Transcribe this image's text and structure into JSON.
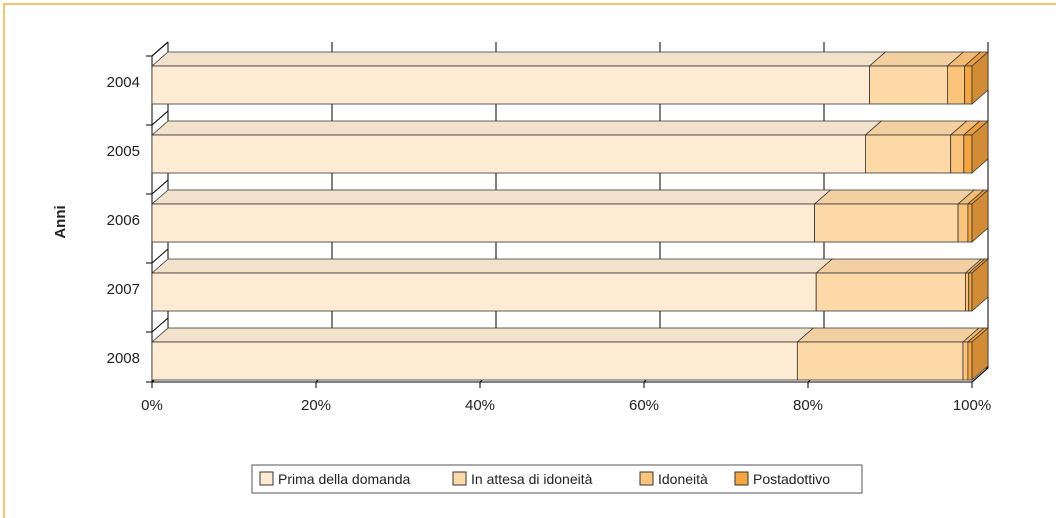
{
  "chart_data": {
    "type": "bar",
    "orientation": "horizontal",
    "stacked": "percent",
    "ylabel": "Anni",
    "xlabel": "",
    "categories": [
      "2004",
      "2005",
      "2006",
      "2007",
      "2008"
    ],
    "x_ticks": [
      "0%",
      "20%",
      "40%",
      "60%",
      "80%",
      "100%"
    ],
    "xlim": [
      0,
      100
    ],
    "grid": true,
    "legend_position": "bottom",
    "series": [
      {
        "name": "Prima della domanda",
        "values": [
          87.5,
          87.0,
          80.8,
          81.0,
          78.7
        ],
        "color": "#fdebd3"
      },
      {
        "name": "In attesa di idoneità",
        "values": [
          9.5,
          10.4,
          17.5,
          18.2,
          20.2
        ],
        "color": "#fdd9a8"
      },
      {
        "name": "Idoneità",
        "values": [
          2.1,
          1.6,
          1.2,
          0.4,
          0.6
        ],
        "color": "#fcc47a"
      },
      {
        "name": "Postadottivo",
        "values": [
          0.9,
          1.0,
          0.5,
          0.4,
          0.5
        ],
        "color": "#f7a53e"
      }
    ]
  }
}
